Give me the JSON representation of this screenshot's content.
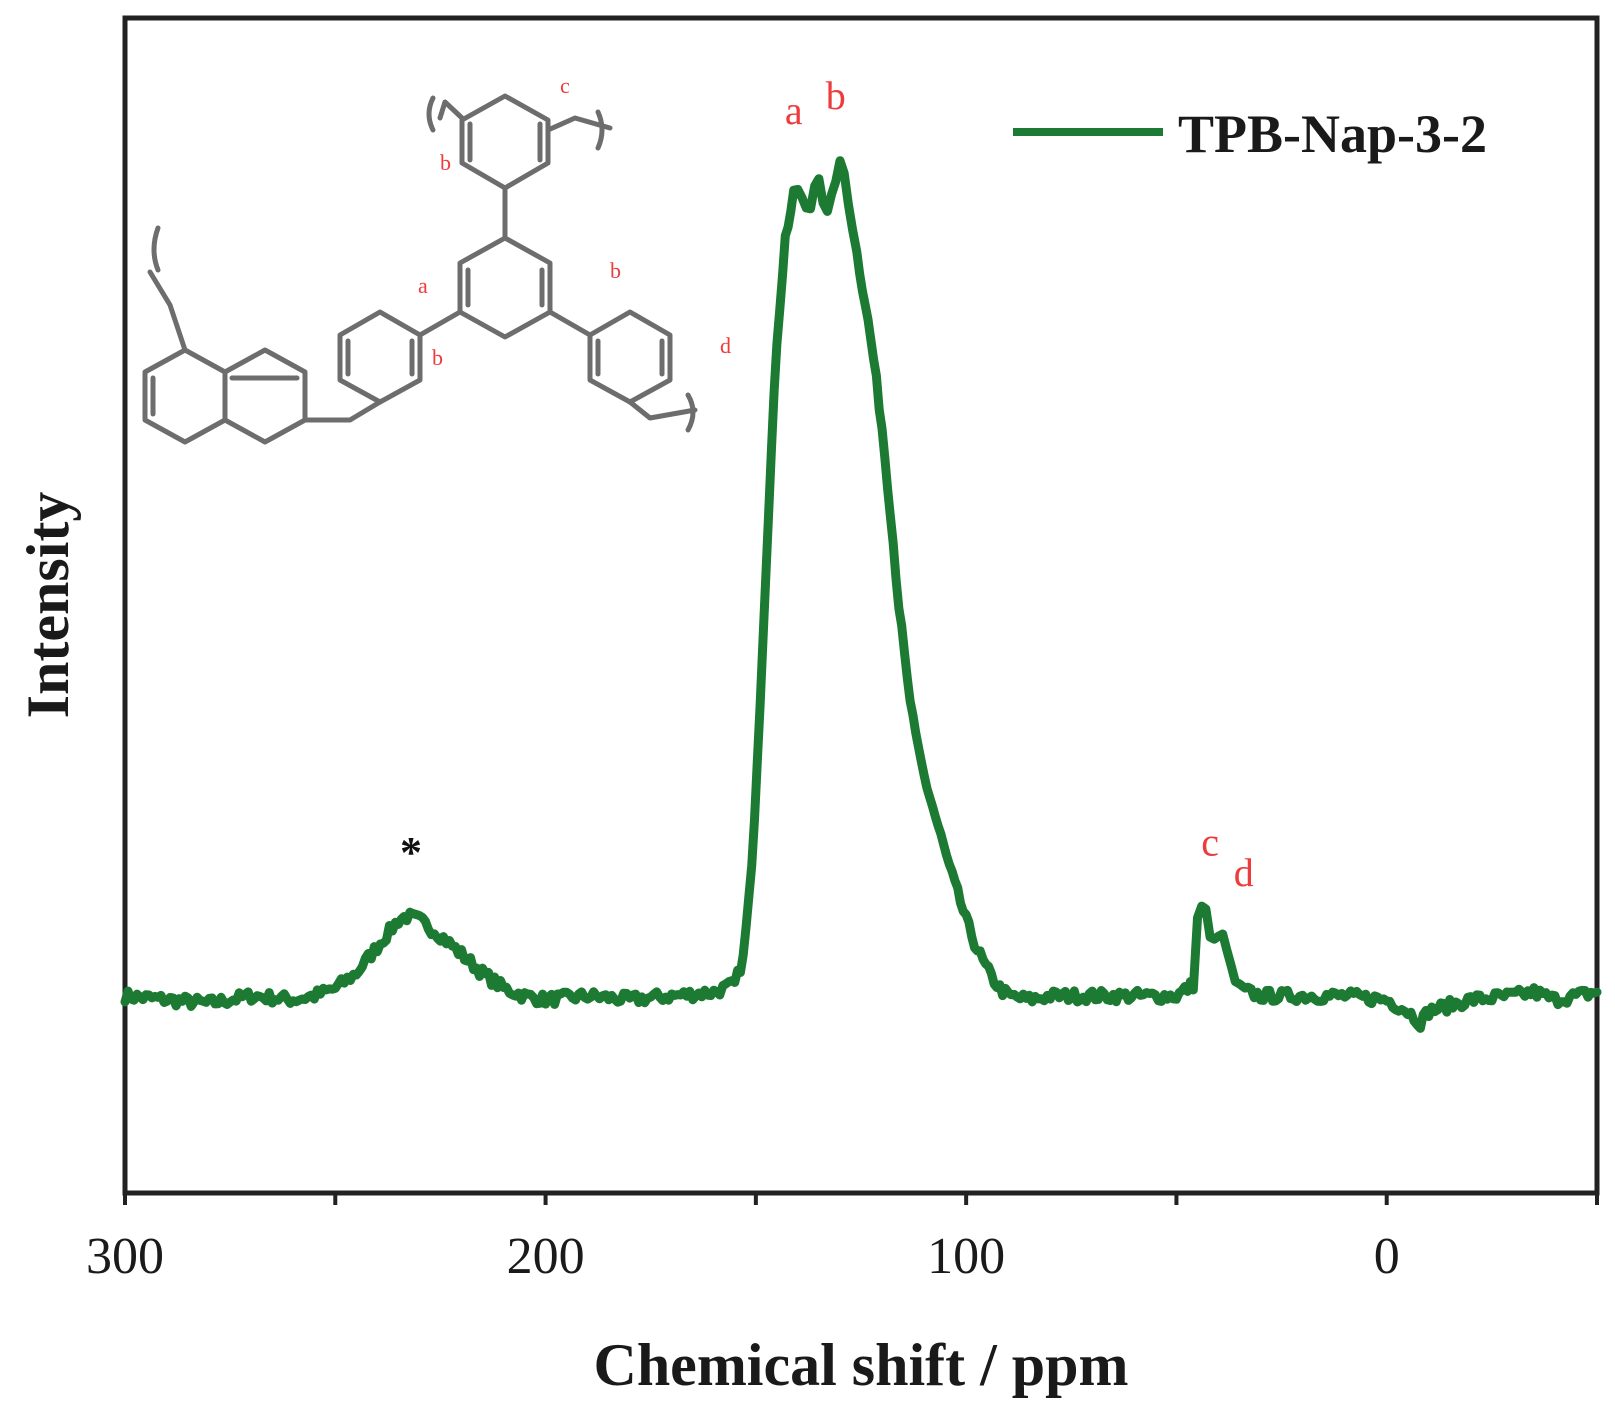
{
  "chart_data": {
    "type": "line",
    "xlabel": "Chemical shift / ppm",
    "ylabel": "Intensity",
    "xlim": [
      300,
      -50
    ],
    "x_reversed": true,
    "ylim": [
      -0.5,
      2.6
    ],
    "x_ticks": [
      300,
      250,
      200,
      150,
      100,
      50,
      0,
      -50
    ],
    "x_tick_labels": [
      "300",
      "200",
      "100",
      "0"
    ],
    "x_tick_label_values": [
      300,
      200,
      100,
      0
    ],
    "grid": false,
    "legend_position": "top-right",
    "colors": {
      "series": "#1c7a32",
      "peak_labels": "#ee3b3b",
      "axis": "#222222"
    },
    "series": [
      {
        "name": "TPB-Nap-3-2",
        "x": [
          300,
          290,
          280,
          270,
          260,
          255,
          250,
          245,
          240,
          235,
          233,
          230,
          225,
          220,
          215,
          210,
          205,
          200,
          190,
          180,
          170,
          160,
          155,
          153,
          151,
          149,
          147,
          145,
          143,
          141,
          140,
          139,
          138,
          137,
          136,
          135,
          134,
          133,
          132,
          131,
          130,
          129,
          128,
          127,
          126,
          124,
          122,
          120,
          118,
          116,
          114,
          112,
          110,
          108,
          106,
          104,
          102,
          100,
          98,
          96,
          94,
          92,
          90,
          85,
          80,
          70,
          60,
          50,
          46,
          45,
          44,
          43,
          42,
          41,
          40,
          39,
          38,
          37,
          36,
          35,
          33,
          30,
          20,
          10,
          0,
          -5,
          -8,
          -10,
          -20,
          -30,
          -35,
          -40,
          -50
        ],
        "y": [
          0.02,
          0.01,
          0.0,
          0.02,
          0.01,
          0.02,
          0.04,
          0.08,
          0.15,
          0.22,
          0.23,
          0.22,
          0.18,
          0.13,
          0.08,
          0.04,
          0.02,
          0.01,
          0.02,
          0.01,
          0.02,
          0.03,
          0.05,
          0.12,
          0.35,
          0.8,
          1.3,
          1.75,
          2.02,
          2.13,
          2.15,
          2.12,
          2.09,
          2.1,
          2.16,
          2.19,
          2.12,
          2.08,
          2.12,
          2.18,
          2.21,
          2.19,
          2.12,
          2.05,
          1.98,
          1.85,
          1.7,
          1.52,
          1.3,
          1.05,
          0.85,
          0.7,
          0.6,
          0.52,
          0.44,
          0.36,
          0.29,
          0.22,
          0.16,
          0.11,
          0.07,
          0.04,
          0.02,
          0.01,
          0.02,
          0.02,
          0.02,
          0.02,
          0.05,
          0.22,
          0.26,
          0.24,
          0.17,
          0.16,
          0.19,
          0.17,
          0.14,
          0.09,
          0.06,
          0.04,
          0.03,
          0.02,
          0.02,
          0.02,
          0.01,
          -0.02,
          -0.05,
          -0.02,
          0.01,
          0.02,
          0.03,
          0.01,
          0.03
        ]
      }
    ],
    "annotations": [
      {
        "text": "*",
        "x": 232,
        "y": 0.36,
        "style": "star"
      },
      {
        "text": "a",
        "x": 141,
        "y": 2.32,
        "style": "peak"
      },
      {
        "text": "b",
        "x": 131,
        "y": 2.36,
        "style": "peak"
      },
      {
        "text": "c",
        "x": 42,
        "y": 0.39,
        "style": "peak"
      },
      {
        "text": "d",
        "x": 34,
        "y": 0.31,
        "style": "peak"
      }
    ]
  },
  "structure_labels": {
    "a": "a",
    "b": "b",
    "c": "c",
    "d": "d"
  }
}
